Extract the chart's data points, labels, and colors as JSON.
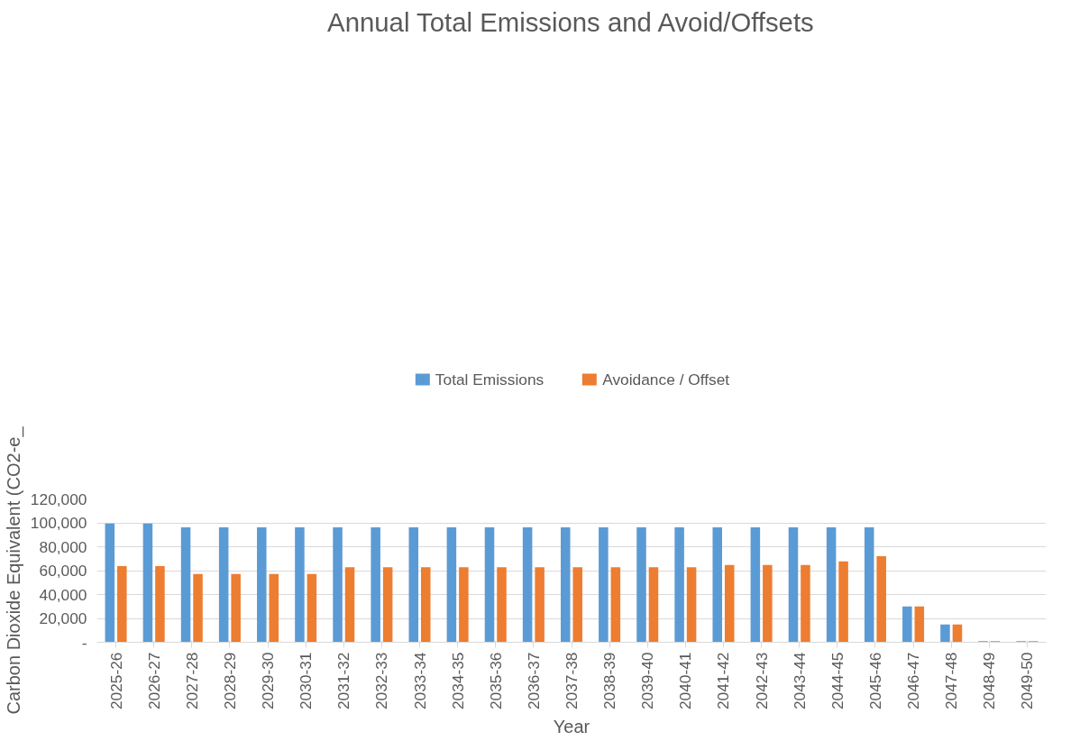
{
  "chart_data": {
    "type": "bar",
    "title": "Annual Total Emissions and Avoid/Offsets",
    "xlabel": "Year",
    "ylabel": "Carbon Dioxide Equivalent (CO2-e_",
    "categories": [
      "2025-26",
      "2026-27",
      "2027-28",
      "2028-29",
      "2029-30",
      "2030-31",
      "2031-32",
      "2032-33",
      "2033-34",
      "2034-35",
      "2035-36",
      "2036-37",
      "2037-38",
      "2038-39",
      "2039-40",
      "2040-41",
      "2041-42",
      "2042-43",
      "2043-44",
      "2044-45",
      "2045-46",
      "2046-47",
      "2047-48",
      "2048-49",
      "2049-50"
    ],
    "series": [
      {
        "name": "Total Emissions",
        "color": "#5b9bd5",
        "values": [
          99500,
          99500,
          96300,
          96300,
          96300,
          96300,
          96300,
          96300,
          96300,
          96300,
          96300,
          96300,
          96300,
          96300,
          96300,
          96300,
          96300,
          96300,
          96300,
          96300,
          96300,
          30000,
          15000,
          1000,
          1000
        ]
      },
      {
        "name": "Avoidance / Offset",
        "color": "#ed7d31",
        "values": [
          63700,
          63700,
          57200,
          57200,
          57200,
          57200,
          62800,
          62800,
          62800,
          62800,
          62800,
          62800,
          62800,
          62800,
          62800,
          62800,
          64700,
          64700,
          64700,
          67800,
          72000,
          30000,
          15000,
          1000,
          1000
        ]
      }
    ],
    "ylim": [
      0,
      120000
    ],
    "yticks": [
      {
        "value": 0,
        "label": "-"
      },
      {
        "value": 20000,
        "label": "20,000"
      },
      {
        "value": 40000,
        "label": "40,000"
      },
      {
        "value": 60000,
        "label": "60,000"
      },
      {
        "value": 80000,
        "label": "80,000"
      },
      {
        "value": 100000,
        "label": "100,000"
      },
      {
        "value": 120000,
        "label": "120,000"
      }
    ],
    "grid": "y",
    "legend": "top"
  }
}
